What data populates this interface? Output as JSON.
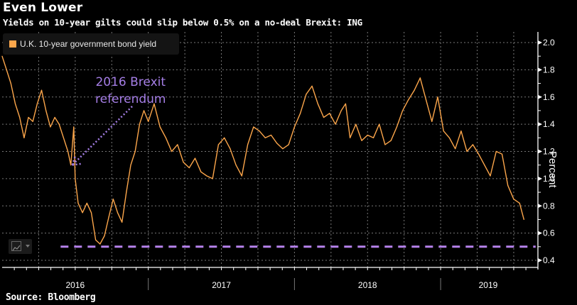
{
  "header": {
    "title": "Even Lower",
    "subtitle": "Yields on 10-year gilts could slip below 0.5% on a no-deal Brexit: ING"
  },
  "footer": {
    "source": "Source: Bloomberg"
  },
  "legend": {
    "items": [
      {
        "label": "U.K. 10-year government bond yield",
        "color": "#fca64b"
      }
    ]
  },
  "controls": {
    "chart_type_icon": "line-chart-icon"
  },
  "annotation": {
    "line1": "2016 Brexit",
    "line2": "referendum",
    "color": "#a57ee6",
    "target_date": 2016.48,
    "target_value": 1.1
  },
  "chart_data": {
    "type": "line",
    "title": "Even Lower",
    "subtitle": "Yields on 10-year gilts could slip below 0.5% on a no-deal Brexit: ING",
    "xlabel": "",
    "ylabel": "Percent",
    "ylim": [
      0.4,
      2.0
    ],
    "yticks": [
      2.0,
      1.8,
      1.6,
      1.4,
      1.2,
      1.0,
      0.8,
      0.6,
      0.4
    ],
    "ytick_labels": [
      "2.0",
      "1.8",
      "1.6",
      "1.4",
      "1.2",
      "1.0",
      "0.8",
      "0.6",
      "0.4"
    ],
    "xlim": [
      2016.0,
      2019.65
    ],
    "xtick_labels": [
      "2016",
      "2017",
      "2018",
      "2019"
    ],
    "x_year_starts": [
      2016,
      2017,
      2018,
      2019
    ],
    "grid": true,
    "y_axis_side": "right",
    "legend_position": "top-left",
    "series": [
      {
        "name": "U.K. 10-year government bond yield",
        "color": "#fca64b",
        "x": [
          2016.0,
          2016.03,
          2016.06,
          2016.09,
          2016.12,
          2016.15,
          2016.18,
          2016.21,
          2016.24,
          2016.27,
          2016.3,
          2016.33,
          2016.36,
          2016.39,
          2016.42,
          2016.45,
          2016.47,
          2016.49,
          2016.5,
          2016.52,
          2016.55,
          2016.58,
          2016.61,
          2016.64,
          2016.67,
          2016.7,
          2016.73,
          2016.76,
          2016.79,
          2016.82,
          2016.85,
          2016.88,
          2016.91,
          2016.94,
          2016.97,
          2017.0,
          2017.04,
          2017.08,
          2017.12,
          2017.16,
          2017.2,
          2017.24,
          2017.28,
          2017.32,
          2017.36,
          2017.4,
          2017.44,
          2017.48,
          2017.52,
          2017.56,
          2017.6,
          2017.64,
          2017.68,
          2017.72,
          2017.76,
          2017.8,
          2017.84,
          2017.88,
          2017.92,
          2017.96,
          2018.0,
          2018.04,
          2018.08,
          2018.12,
          2018.16,
          2018.2,
          2018.24,
          2018.28,
          2018.32,
          2018.35,
          2018.38,
          2018.42,
          2018.46,
          2018.5,
          2018.54,
          2018.58,
          2018.62,
          2018.66,
          2018.7,
          2018.74,
          2018.78,
          2018.82,
          2018.86,
          2018.9,
          2018.94,
          2018.98,
          2019.02,
          2019.06,
          2019.1,
          2019.14,
          2019.18,
          2019.22,
          2019.26,
          2019.3,
          2019.34,
          2019.38,
          2019.42,
          2019.46,
          2019.5,
          2019.54,
          2019.57
        ],
        "values": [
          1.9,
          1.8,
          1.7,
          1.55,
          1.45,
          1.3,
          1.45,
          1.42,
          1.55,
          1.65,
          1.5,
          1.38,
          1.45,
          1.4,
          1.3,
          1.2,
          1.1,
          1.38,
          1.0,
          0.82,
          0.75,
          0.82,
          0.75,
          0.55,
          0.52,
          0.58,
          0.72,
          0.85,
          0.75,
          0.68,
          0.9,
          1.1,
          1.2,
          1.4,
          1.5,
          1.42,
          1.55,
          1.38,
          1.3,
          1.2,
          1.25,
          1.12,
          1.08,
          1.15,
          1.05,
          1.02,
          1.0,
          1.25,
          1.3,
          1.22,
          1.1,
          1.02,
          1.25,
          1.38,
          1.35,
          1.3,
          1.32,
          1.26,
          1.22,
          1.25,
          1.38,
          1.48,
          1.62,
          1.68,
          1.55,
          1.45,
          1.48,
          1.4,
          1.5,
          1.55,
          1.3,
          1.4,
          1.28,
          1.32,
          1.3,
          1.4,
          1.25,
          1.28,
          1.38,
          1.5,
          1.58,
          1.65,
          1.74,
          1.58,
          1.42,
          1.6,
          1.35,
          1.3,
          1.22,
          1.35,
          1.2,
          1.25,
          1.18,
          1.1,
          1.02,
          1.2,
          1.18,
          0.95,
          0.85,
          0.82,
          0.7
        ]
      },
      {
        "name": "0.5% threshold",
        "color": "#b682ec",
        "style": "dashed",
        "x": [
          2016.4,
          2019.65
        ],
        "values": [
          0.5,
          0.5
        ]
      }
    ]
  }
}
